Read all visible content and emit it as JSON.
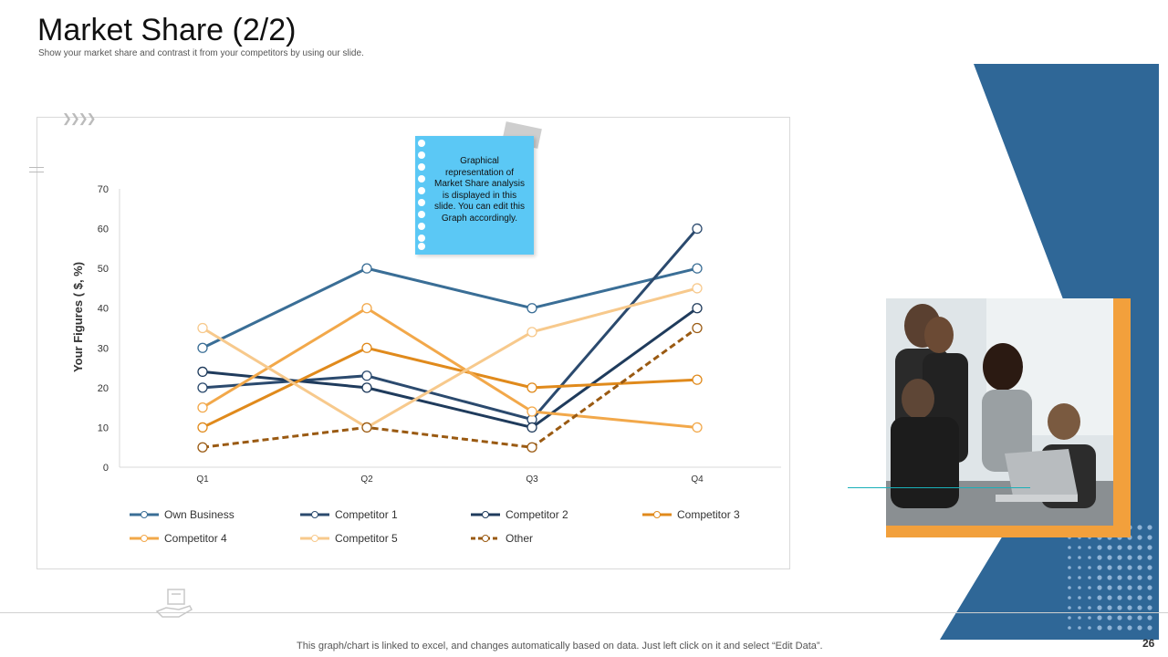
{
  "slide": {
    "title": "Market Share (2/2)",
    "subtitle": "Show your market share and contrast it from your competitors by using our slide.",
    "note": "Graphical representation of Market Share analysis is displayed in this slide. You can edit this Graph accordingly.",
    "footer": "This graph/chart is linked to excel,  and changes automatically based on data. Just left click on it and select “Edit Data”.",
    "page_number": "26",
    "chevrons": "❯❯❯❯",
    "accent_blue": "#2f6797",
    "accent_orange": "#f2a03c"
  },
  "chart_data": {
    "type": "line",
    "title": "",
    "xlabel": "",
    "ylabel": "Your Figures (  $, %)",
    "categories": [
      "Q1",
      "Q2",
      "Q3",
      "Q4"
    ],
    "ylim": [
      0,
      70
    ],
    "yticks": [
      0,
      10,
      20,
      30,
      40,
      50,
      60,
      70
    ],
    "grid": false,
    "legend_position": "bottom",
    "series": [
      {
        "name": "Own Business",
        "values": [
          30,
          50,
          40,
          50
        ],
        "color": "#3a6e96",
        "dashed": false
      },
      {
        "name": "Competitor 1",
        "values": [
          20,
          23,
          12,
          60
        ],
        "color": "#2b4a6e",
        "dashed": false
      },
      {
        "name": "Competitor 2",
        "values": [
          24,
          20,
          10,
          40
        ],
        "color": "#1f3b5c",
        "dashed": false
      },
      {
        "name": "Competitor 3",
        "values": [
          10,
          30,
          20,
          22
        ],
        "color": "#e08a1c",
        "dashed": false
      },
      {
        "name": "Competitor 4",
        "values": [
          15,
          40,
          14,
          10
        ],
        "color": "#f2a84a",
        "dashed": false
      },
      {
        "name": "Competitor 5",
        "values": [
          35,
          10,
          34,
          45
        ],
        "color": "#f7c98c",
        "dashed": false
      },
      {
        "name": "Other",
        "values": [
          5,
          10,
          5,
          35
        ],
        "color": "#9a5a12",
        "dashed": true
      }
    ]
  }
}
